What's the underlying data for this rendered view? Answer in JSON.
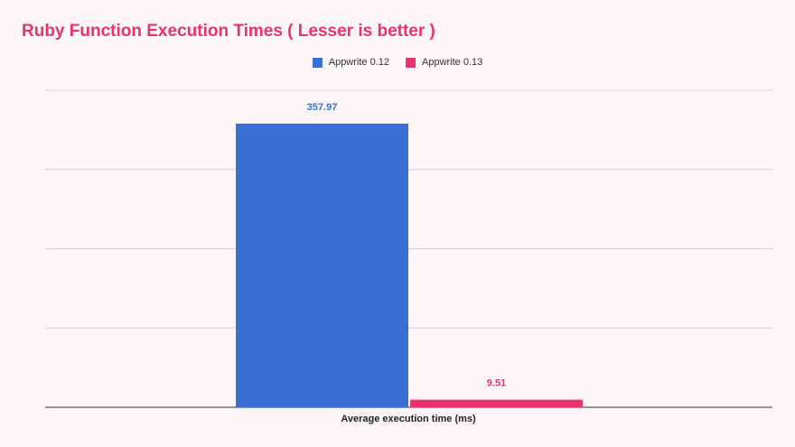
{
  "chart_data": {
    "type": "bar",
    "title": "Ruby Function Execution Times ( Lesser is better )",
    "categories": [
      "Average execution time (ms)"
    ],
    "series": [
      {
        "name": "Appwrite 0.12",
        "values": [
          357.97
        ],
        "value_labels": [
          "357.97"
        ],
        "color": "#3a70d4"
      },
      {
        "name": "Appwrite 0.13",
        "values": [
          9.51
        ],
        "value_labels": [
          "9.51"
        ],
        "color": "#e8336d"
      }
    ],
    "xlabel": "Average execution time (ms)",
    "ylabel": "",
    "ylim": [
      0,
      400
    ],
    "grid": true,
    "legend_position": "top"
  }
}
